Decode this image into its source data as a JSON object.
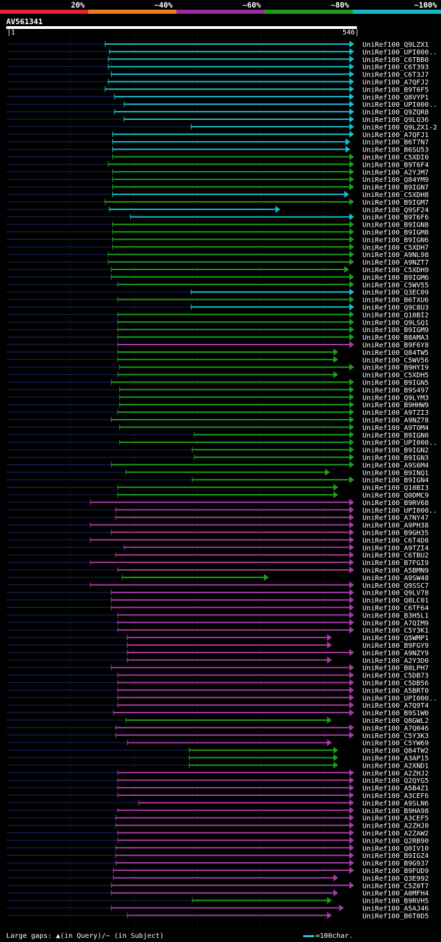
{
  "legend": [
    {
      "label": "20%",
      "color": "#e8202f"
    },
    {
      "label": "~40%",
      "color": "#e87f1f"
    },
    {
      "label": "~60%",
      "color": "#9b2b9b"
    },
    {
      "label": "~80%",
      "color": "#1f9b1f"
    },
    {
      "label": "~100%",
      "color": "#14b8c4"
    }
  ],
  "query": {
    "name": "AV561341",
    "start": "1",
    "end": "546",
    "length": 546
  },
  "footer": {
    "gaps_text": "Large gaps: ▲(in Query)/− (in Subject)",
    "scale_text": "=100char."
  },
  "colors": {
    "cyan": "#14c0cc",
    "green": "#1c9e1c",
    "magenta": "#a83aa8",
    "dim": "#1c2a6a",
    "gap": "#ffff88"
  },
  "hits": [
    {
      "name": "UniRef100_Q9LZX1",
      "start": 155,
      "end": 546,
      "class": "cyan"
    },
    {
      "name": "UniRef100_UPI000..",
      "start": 162,
      "end": 546,
      "class": "cyan"
    },
    {
      "name": "UniRef100_C6TBB0",
      "start": 160,
      "end": 546,
      "class": "cyan"
    },
    {
      "name": "UniRef100_C6T393",
      "start": 160,
      "end": 546,
      "class": "cyan"
    },
    {
      "name": "UniRef100_C6T3J7",
      "start": 165,
      "end": 546,
      "class": "cyan"
    },
    {
      "name": "UniRef100_A7QFJ2",
      "start": 160,
      "end": 546,
      "class": "cyan"
    },
    {
      "name": "UniRef100_B9T6F5",
      "start": 155,
      "end": 546,
      "class": "cyan"
    },
    {
      "name": "UniRef100_Q8VYP1",
      "start": 170,
      "end": 546,
      "class": "cyan"
    },
    {
      "name": "UniRef100_UPI000..",
      "start": 185,
      "end": 546,
      "class": "cyan"
    },
    {
      "name": "UniRef100_Q9ZQR8",
      "start": 170,
      "end": 546,
      "class": "cyan"
    },
    {
      "name": "UniRef100_Q9LQ36",
      "start": 185,
      "end": 546,
      "class": "cyan"
    },
    {
      "name": "UniRef100_Q9LZX1-2",
      "start": 290,
      "end": 546,
      "class": "cyan"
    },
    {
      "name": "UniRef100_A7QFJ1",
      "start": 167,
      "end": 546,
      "class": "cyan"
    },
    {
      "name": "UniRef100_B6T7N7",
      "start": 167,
      "end": 540,
      "class": "cyan"
    },
    {
      "name": "UniRef100_B6SU53",
      "start": 167,
      "end": 540,
      "class": "cyan"
    },
    {
      "name": "UniRef100_C5XDI0",
      "start": 167,
      "end": 546,
      "class": "green"
    },
    {
      "name": "UniRef100_B9T6F4",
      "start": 160,
      "end": 546,
      "class": "green"
    },
    {
      "name": "UniRef100_A2YJM7",
      "start": 167,
      "end": 546,
      "class": "green"
    },
    {
      "name": "UniRef100_Q84YM9",
      "start": 167,
      "end": 546,
      "class": "green"
    },
    {
      "name": "UniRef100_B9IGN7",
      "start": 167,
      "end": 546,
      "class": "green"
    },
    {
      "name": "UniRef100_C5XDH8",
      "start": 167,
      "end": 538,
      "class": "cyan"
    },
    {
      "name": "UniRef100_B9IGM7",
      "start": 155,
      "end": 546,
      "class": "green"
    },
    {
      "name": "UniRef100_Q9SF24",
      "start": 162,
      "end": 430,
      "class": "cyan"
    },
    {
      "name": "UniRef100_B9T6F6",
      "start": 195,
      "end": 546,
      "class": "cyan"
    },
    {
      "name": "UniRef100_B9IGN8",
      "start": 167,
      "end": 546,
      "class": "green"
    },
    {
      "name": "UniRef100_B9IGM8",
      "start": 167,
      "end": 546,
      "class": "green"
    },
    {
      "name": "UniRef100_B9IGN6",
      "start": 167,
      "end": 546,
      "class": "green"
    },
    {
      "name": "UniRef100_C5XDH7",
      "start": 167,
      "end": 546,
      "class": "green"
    },
    {
      "name": "UniRef100_A9NL98",
      "start": 160,
      "end": 546,
      "class": "green"
    },
    {
      "name": "UniRef100_A9NZT7",
      "start": 160,
      "end": 546,
      "class": "green"
    },
    {
      "name": "UniRef100_C5XDH9",
      "start": 165,
      "end": 538,
      "class": "green"
    },
    {
      "name": "UniRef100_B9IGM6",
      "start": 165,
      "end": 546,
      "class": "green"
    },
    {
      "name": "UniRef100_C5WV55",
      "start": 175,
      "end": 546,
      "class": "green"
    },
    {
      "name": "UniRef100_Q3EC09",
      "start": 290,
      "end": 546,
      "class": "cyan"
    },
    {
      "name": "UniRef100_B6TXU6",
      "start": 175,
      "end": 546,
      "class": "green"
    },
    {
      "name": "UniRef100_Q9C8U3",
      "start": 290,
      "end": 546,
      "class": "cyan"
    },
    {
      "name": "UniRef100_Q10BI2",
      "start": 175,
      "end": 546,
      "class": "green"
    },
    {
      "name": "UniRef100_Q9LSQ1",
      "start": 175,
      "end": 546,
      "class": "green"
    },
    {
      "name": "UniRef100_B9IGM9",
      "start": 175,
      "end": 546,
      "class": "green"
    },
    {
      "name": "UniRef100_B8AMA3",
      "start": 175,
      "end": 546,
      "class": "green"
    },
    {
      "name": "UniRef100_B9F6Y8",
      "start": 175,
      "end": 546,
      "class": "magenta"
    },
    {
      "name": "UniRef100_Q84TW5",
      "start": 175,
      "end": 521,
      "class": "green"
    },
    {
      "name": "UniRef100_C5WV56",
      "start": 175,
      "end": 521,
      "class": "green"
    },
    {
      "name": "UniRef100_B9HYI9",
      "start": 178,
      "end": 546,
      "class": "green"
    },
    {
      "name": "UniRef100_C5XDH5",
      "start": 175,
      "end": 521,
      "class": "green"
    },
    {
      "name": "UniRef100_B9IGN5",
      "start": 165,
      "end": 546,
      "class": "green"
    },
    {
      "name": "UniRef100_B9S497",
      "start": 178,
      "end": 546,
      "class": "green"
    },
    {
      "name": "UniRef100_Q9LYM3",
      "start": 178,
      "end": 546,
      "class": "green"
    },
    {
      "name": "UniRef100_B9HHW9",
      "start": 178,
      "end": 546,
      "class": "green"
    },
    {
      "name": "UniRef100_A9TZI3",
      "start": 175,
      "end": 546,
      "class": "green"
    },
    {
      "name": "UniRef100_A9NZ78",
      "start": 165,
      "end": 546,
      "class": "green"
    },
    {
      "name": "UniRef100_A9TOM4",
      "start": 178,
      "end": 546,
      "class": "green"
    },
    {
      "name": "UniRef100_B9IGN0",
      "start": 295,
      "end": 546,
      "class": "green"
    },
    {
      "name": "UniRef100_UPI000..",
      "start": 178,
      "end": 546,
      "class": "green"
    },
    {
      "name": "UniRef100_B9IGN2",
      "start": 292,
      "end": 546,
      "class": "green"
    },
    {
      "name": "UniRef100_B9IGN3",
      "start": 295,
      "end": 546,
      "class": "green"
    },
    {
      "name": "UniRef100_A9S6M4",
      "start": 165,
      "end": 546,
      "class": "green"
    },
    {
      "name": "UniRef100_B9INQ1",
      "start": 188,
      "end": 508,
      "class": "green"
    },
    {
      "name": "UniRef100_B9IGN4",
      "start": 292,
      "end": 546,
      "class": "green"
    },
    {
      "name": "UniRef100_Q10BI3",
      "start": 175,
      "end": 521,
      "class": "green"
    },
    {
      "name": "UniRef100_Q0DMC9",
      "start": 175,
      "end": 521,
      "class": "green"
    },
    {
      "name": "UniRef100_B9RV68",
      "start": 132,
      "end": 546,
      "class": "magenta"
    },
    {
      "name": "UniRef100_UPI000..",
      "start": 172,
      "end": 546,
      "class": "magenta"
    },
    {
      "name": "UniRef100_A7NY47",
      "start": 172,
      "end": 546,
      "class": "magenta"
    },
    {
      "name": "UniRef100_A9PH38",
      "start": 132,
      "end": 546,
      "class": "magenta"
    },
    {
      "name": "UniRef100_B9GH35",
      "start": 165,
      "end": 546,
      "class": "magenta"
    },
    {
      "name": "UniRef100_C6T4D8",
      "start": 132,
      "end": 546,
      "class": "magenta"
    },
    {
      "name": "UniRef100_A9TZI4",
      "start": 185,
      "end": 546,
      "class": "magenta"
    },
    {
      "name": "UniRef100_C6TBU2",
      "start": 172,
      "end": 546,
      "class": "magenta"
    },
    {
      "name": "UniRef100_B7FGI9",
      "start": 132,
      "end": 546,
      "class": "magenta"
    },
    {
      "name": "UniRef100_A5BMN9",
      "start": 175,
      "end": 546,
      "class": "magenta"
    },
    {
      "name": "UniRef100_A9SW48",
      "start": 182,
      "end": 412,
      "class": "green"
    },
    {
      "name": "UniRef100_Q9SSC7",
      "start": 132,
      "end": 546,
      "class": "magenta"
    },
    {
      "name": "UniRef100_Q9LV78",
      "start": 165,
      "end": 546,
      "class": "magenta"
    },
    {
      "name": "UniRef100_Q8LC01",
      "start": 165,
      "end": 546,
      "class": "magenta"
    },
    {
      "name": "UniRef100_C6TF64",
      "start": 165,
      "end": 546,
      "class": "magenta"
    },
    {
      "name": "UniRef100_B3H5L1",
      "start": 175,
      "end": 546,
      "class": "magenta"
    },
    {
      "name": "UniRef100_A7QIM9",
      "start": 175,
      "end": 546,
      "class": "magenta"
    },
    {
      "name": "UniRef100_C5Y3K1",
      "start": 175,
      "end": 546,
      "class": "magenta"
    },
    {
      "name": "UniRef100_Q5WMP1",
      "start": 190,
      "end": 511,
      "class": "magenta"
    },
    {
      "name": "UniRef100_B9FGY9",
      "start": 190,
      "end": 511,
      "class": "magenta"
    },
    {
      "name": "UniRef100_A9NZY9",
      "start": 190,
      "end": 546,
      "class": "magenta"
    },
    {
      "name": "UniRef100_A2Y3D0",
      "start": 190,
      "end": 511,
      "class": "magenta"
    },
    {
      "name": "UniRef100_B8LPH7",
      "start": 165,
      "end": 546,
      "class": "magenta"
    },
    {
      "name": "UniRef100_C5DB73",
      "start": 175,
      "end": 546,
      "class": "magenta"
    },
    {
      "name": "UniRef100_C5DB56",
      "start": 175,
      "end": 546,
      "class": "magenta"
    },
    {
      "name": "UniRef100_A5BRT0",
      "start": 175,
      "end": 546,
      "class": "magenta"
    },
    {
      "name": "UniRef100_UPI000..",
      "start": 175,
      "end": 546,
      "class": "magenta"
    },
    {
      "name": "UniRef100_A7Q9T4",
      "start": 175,
      "end": 546,
      "class": "magenta"
    },
    {
      "name": "UniRef100_B9S1W0",
      "start": 168,
      "end": 546,
      "class": "magenta"
    },
    {
      "name": "UniRef100_Q8GWL2",
      "start": 188,
      "end": 511,
      "class": "green"
    },
    {
      "name": "UniRef100_A7Q046",
      "start": 172,
      "end": 546,
      "class": "magenta"
    },
    {
      "name": "UniRef100_C5Y3K3",
      "start": 172,
      "end": 546,
      "class": "magenta"
    },
    {
      "name": "UniRef100_C5YW69",
      "start": 190,
      "end": 511,
      "class": "magenta"
    },
    {
      "name": "UniRef100_Q84TW2",
      "start": 287,
      "end": 521,
      "class": "green"
    },
    {
      "name": "UniRef100_A3AP15",
      "start": 287,
      "end": 521,
      "class": "green"
    },
    {
      "name": "UniRef100_A2XND1",
      "start": 287,
      "end": 521,
      "class": "green"
    },
    {
      "name": "UniRef100_A2ZHJ2",
      "start": 175,
      "end": 546,
      "class": "magenta"
    },
    {
      "name": "UniRef100_Q2QYG5",
      "start": 175,
      "end": 546,
      "class": "magenta"
    },
    {
      "name": "UniRef100_A5B4Z1",
      "start": 175,
      "end": 546,
      "class": "magenta"
    },
    {
      "name": "UniRef100_A3CEF6",
      "start": 175,
      "end": 546,
      "class": "magenta"
    },
    {
      "name": "UniRef100_A9SLN6",
      "start": 208,
      "end": 546,
      "class": "magenta"
    },
    {
      "name": "UniRef100_B9HA98",
      "start": 175,
      "end": 546,
      "class": "magenta"
    },
    {
      "name": "UniRef100_A3CEF5",
      "start": 172,
      "end": 546,
      "class": "magenta"
    },
    {
      "name": "UniRef100_A2ZHJ0",
      "start": 172,
      "end": 546,
      "class": "magenta"
    },
    {
      "name": "UniRef100_A2ZAW2",
      "start": 175,
      "end": 546,
      "class": "magenta"
    },
    {
      "name": "UniRef100_Q2RB90",
      "start": 175,
      "end": 546,
      "class": "magenta"
    },
    {
      "name": "UniRef100_Q0IV10",
      "start": 172,
      "end": 546,
      "class": "magenta"
    },
    {
      "name": "UniRef100_B9IGZ4",
      "start": 172,
      "end": 546,
      "class": "magenta"
    },
    {
      "name": "UniRef100_B9G937",
      "start": 172,
      "end": 546,
      "class": "magenta"
    },
    {
      "name": "UniRef100_B9FUD9",
      "start": 168,
      "end": 546,
      "class": "magenta"
    },
    {
      "name": "UniRef100_Q3E992",
      "start": 168,
      "end": 521,
      "class": "magenta"
    },
    {
      "name": "UniRef100_C5Z0T7",
      "start": 165,
      "end": 546,
      "class": "magenta"
    },
    {
      "name": "UniRef100_A0MFH4",
      "start": 165,
      "end": 521,
      "class": "magenta"
    },
    {
      "name": "UniRef100_B9RVH5",
      "start": 292,
      "end": 511,
      "class": "green"
    },
    {
      "name": "UniRef100_A5AJ46",
      "start": 165,
      "end": 530,
      "class": "magenta"
    },
    {
      "name": "UniRef100_B6T0D5",
      "start": 190,
      "end": 511,
      "class": "magenta"
    }
  ]
}
